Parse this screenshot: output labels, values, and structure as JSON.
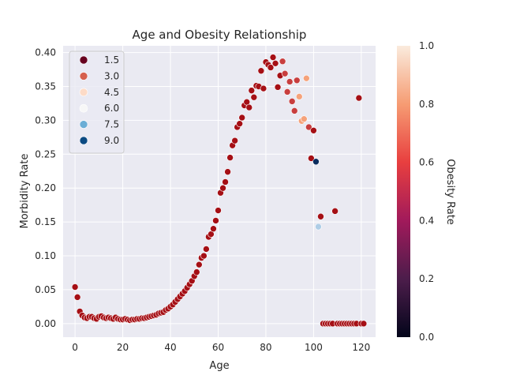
{
  "chart_data": {
    "type": "scatter",
    "title": "Age and Obesity Relationship",
    "xlabel": "Age",
    "ylabel": "Morbidity Rate",
    "xlim": [
      -5,
      126
    ],
    "ylim": [
      -0.02,
      0.41
    ],
    "x_ticks": [
      "0",
      "20",
      "40",
      "60",
      "80",
      "100",
      "120"
    ],
    "x_tick_values": [
      0,
      20,
      40,
      60,
      80,
      100,
      120
    ],
    "y_ticks": [
      "0.00",
      "0.05",
      "0.10",
      "0.15",
      "0.20",
      "0.25",
      "0.30",
      "0.35",
      "0.40"
    ],
    "y_tick_values": [
      0.0,
      0.05,
      0.1,
      0.15,
      0.2,
      0.25,
      0.3,
      0.35,
      0.4
    ],
    "grid": true,
    "legend": {
      "placement": "top-left",
      "entries": [
        {
          "label": "1.5",
          "color": "#67001f"
        },
        {
          "label": "3.0",
          "color": "#d6604d"
        },
        {
          "label": "4.5",
          "color": "#fddbc7"
        },
        {
          "label": "6.0",
          "color": "#f7f7f7"
        },
        {
          "label": "7.5",
          "color": "#6baed6"
        },
        {
          "label": "9.0",
          "color": "#0b4a82"
        }
      ]
    },
    "colorbar": {
      "label": "Obesity Rate",
      "range": [
        0.0,
        1.0
      ],
      "ticks": [
        "0.0",
        "0.2",
        "0.4",
        "0.6",
        "0.8",
        "1.0"
      ],
      "tick_values": [
        0.0,
        0.2,
        0.4,
        0.6,
        0.8,
        1.0
      ],
      "colormap": [
        "#03051a",
        "#4c1d4b",
        "#a11a5b",
        "#e83f3f",
        "#f69c73",
        "#faebdd"
      ]
    },
    "colors": {
      "dark_red": "#a50f15",
      "red": "#c83e3e",
      "light_orange": "#f5a27a",
      "light_blue": "#aecde6",
      "navy": "#0b2d5e"
    },
    "points": [
      [
        0,
        0.054,
        "dark_red"
      ],
      [
        1,
        0.039,
        "dark_red"
      ],
      [
        2,
        0.018,
        "dark_red"
      ],
      [
        3,
        0.012,
        "dark_red"
      ],
      [
        4,
        0.009,
        "dark_red"
      ],
      [
        5,
        0.008,
        "dark_red"
      ],
      [
        6,
        0.01,
        "dark_red"
      ],
      [
        7,
        0.01,
        "dark_red"
      ],
      [
        8,
        0.008,
        "dark_red"
      ],
      [
        9,
        0.007,
        "dark_red"
      ],
      [
        10,
        0.01,
        "dark_red"
      ],
      [
        11,
        0.011,
        "dark_red"
      ],
      [
        12,
        0.009,
        "dark_red"
      ],
      [
        13,
        0.008,
        "dark_red"
      ],
      [
        14,
        0.009,
        "dark_red"
      ],
      [
        15,
        0.008,
        "dark_red"
      ],
      [
        16,
        0.007,
        "dark_red"
      ],
      [
        17,
        0.009,
        "dark_red"
      ],
      [
        18,
        0.007,
        "dark_red"
      ],
      [
        19,
        0.006,
        "dark_red"
      ],
      [
        20,
        0.006,
        "dark_red"
      ],
      [
        21,
        0.007,
        "dark_red"
      ],
      [
        22,
        0.006,
        "dark_red"
      ],
      [
        23,
        0.005,
        "dark_red"
      ],
      [
        24,
        0.006,
        "dark_red"
      ],
      [
        25,
        0.006,
        "dark_red"
      ],
      [
        26,
        0.007,
        "dark_red"
      ],
      [
        27,
        0.007,
        "dark_red"
      ],
      [
        28,
        0.008,
        "dark_red"
      ],
      [
        29,
        0.008,
        "dark_red"
      ],
      [
        30,
        0.009,
        "dark_red"
      ],
      [
        31,
        0.01,
        "dark_red"
      ],
      [
        32,
        0.011,
        "dark_red"
      ],
      [
        33,
        0.012,
        "dark_red"
      ],
      [
        34,
        0.013,
        "dark_red"
      ],
      [
        35,
        0.015,
        "dark_red"
      ],
      [
        36,
        0.016,
        "dark_red"
      ],
      [
        37,
        0.017,
        "dark_red"
      ],
      [
        38,
        0.02,
        "dark_red"
      ],
      [
        39,
        0.022,
        "dark_red"
      ],
      [
        40,
        0.025,
        "dark_red"
      ],
      [
        41,
        0.028,
        "dark_red"
      ],
      [
        42,
        0.032,
        "dark_red"
      ],
      [
        43,
        0.036,
        "dark_red"
      ],
      [
        44,
        0.04,
        "dark_red"
      ],
      [
        45,
        0.044,
        "dark_red"
      ],
      [
        46,
        0.048,
        "dark_red"
      ],
      [
        47,
        0.053,
        "dark_red"
      ],
      [
        48,
        0.058,
        "dark_red"
      ],
      [
        49,
        0.063,
        "dark_red"
      ],
      [
        50,
        0.07,
        "dark_red"
      ],
      [
        51,
        0.076,
        "dark_red"
      ],
      [
        52,
        0.087,
        "dark_red"
      ],
      [
        53,
        0.097,
        "dark_red"
      ],
      [
        54,
        0.1,
        "dark_red"
      ],
      [
        55,
        0.11,
        "dark_red"
      ],
      [
        56,
        0.128,
        "dark_red"
      ],
      [
        57,
        0.132,
        "dark_red"
      ],
      [
        58,
        0.14,
        "dark_red"
      ],
      [
        59,
        0.152,
        "dark_red"
      ],
      [
        60,
        0.167,
        "dark_red"
      ],
      [
        61,
        0.193,
        "dark_red"
      ],
      [
        62,
        0.2,
        "dark_red"
      ],
      [
        63,
        0.209,
        "dark_red"
      ],
      [
        64,
        0.224,
        "dark_red"
      ],
      [
        65,
        0.245,
        "dark_red"
      ],
      [
        66,
        0.263,
        "dark_red"
      ],
      [
        67,
        0.27,
        "dark_red"
      ],
      [
        68,
        0.29,
        "dark_red"
      ],
      [
        69,
        0.295,
        "dark_red"
      ],
      [
        70,
        0.304,
        "dark_red"
      ],
      [
        71,
        0.322,
        "dark_red"
      ],
      [
        72,
        0.327,
        "dark_red"
      ],
      [
        73,
        0.319,
        "dark_red"
      ],
      [
        74,
        0.344,
        "dark_red"
      ],
      [
        75,
        0.334,
        "dark_red"
      ],
      [
        76,
        0.351,
        "dark_red"
      ],
      [
        77,
        0.35,
        "dark_red"
      ],
      [
        78,
        0.373,
        "dark_red"
      ],
      [
        79,
        0.347,
        "dark_red"
      ],
      [
        80,
        0.386,
        "dark_red"
      ],
      [
        81,
        0.382,
        "dark_red"
      ],
      [
        82,
        0.378,
        "dark_red"
      ],
      [
        83,
        0.393,
        "dark_red"
      ],
      [
        84,
        0.384,
        "dark_red"
      ],
      [
        85,
        0.349,
        "dark_red"
      ],
      [
        86,
        0.366,
        "dark_red"
      ],
      [
        87,
        0.387,
        "red"
      ],
      [
        88,
        0.369,
        "red"
      ],
      [
        89,
        0.342,
        "red"
      ],
      [
        90,
        0.357,
        "red"
      ],
      [
        91,
        0.328,
        "red"
      ],
      [
        92,
        0.314,
        "red"
      ],
      [
        93,
        0.359,
        "red"
      ],
      [
        94,
        0.335,
        "light_orange"
      ],
      [
        95,
        0.299,
        "light_orange"
      ],
      [
        96,
        0.302,
        "light_orange"
      ],
      [
        97,
        0.362,
        "light_orange"
      ],
      [
        98,
        0.29,
        "red"
      ],
      [
        99,
        0.244,
        "dark_red"
      ],
      [
        100,
        0.285,
        "dark_red"
      ],
      [
        101,
        0.239,
        "navy"
      ],
      [
        102,
        0.143,
        "light_blue"
      ],
      [
        103,
        0.158,
        "dark_red"
      ],
      [
        104,
        0.0,
        "dark_red"
      ],
      [
        105,
        0.0,
        "dark_red"
      ],
      [
        106,
        0.0,
        "dark_red"
      ],
      [
        107,
        0.0,
        "dark_red"
      ],
      [
        108,
        0.0,
        "dark_red"
      ],
      [
        109,
        0.166,
        "dark_red"
      ],
      [
        110,
        0.0,
        "dark_red"
      ],
      [
        111,
        0.0,
        "dark_red"
      ],
      [
        112,
        0.0,
        "dark_red"
      ],
      [
        113,
        0.0,
        "dark_red"
      ],
      [
        114,
        0.0,
        "dark_red"
      ],
      [
        115,
        0.0,
        "dark_red"
      ],
      [
        116,
        0.0,
        "dark_red"
      ],
      [
        117,
        0.0,
        "dark_red"
      ],
      [
        118,
        0.0,
        "dark_red"
      ],
      [
        119,
        0.333,
        "dark_red"
      ],
      [
        120,
        0.0,
        "dark_red"
      ],
      [
        121,
        0.0,
        "dark_red"
      ]
    ]
  }
}
